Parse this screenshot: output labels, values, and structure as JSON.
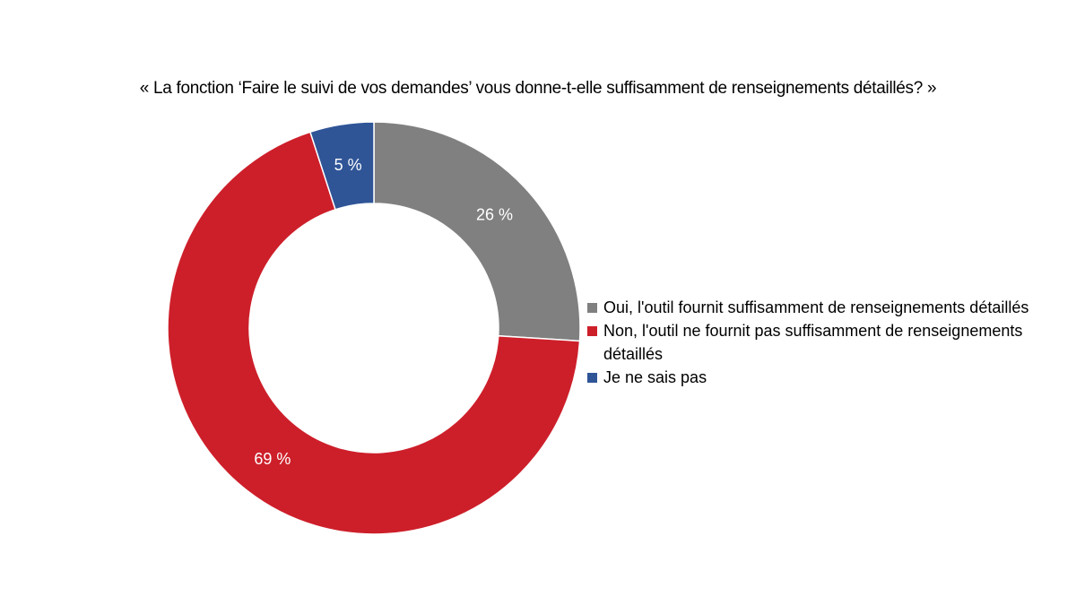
{
  "chart_data": {
    "type": "pie",
    "variant": "donut",
    "title": "« La fonction ‘Faire le suivi de vos demandes’ vous donne-t-elle suffisamment de renseignements détaillés? »",
    "categories": [
      "Oui, l'outil fournit suffisamment de renseignements détaillés",
      "Non, l'outil ne fournit pas suffisamment de renseignements détaillés",
      "Je ne sais pas"
    ],
    "values": [
      26,
      69,
      5
    ],
    "data_labels": [
      "26 %",
      "69 %",
      "5 %"
    ],
    "colors": [
      "#808080",
      "#CD1F2A",
      "#2F5597"
    ],
    "legend_position": "right"
  }
}
